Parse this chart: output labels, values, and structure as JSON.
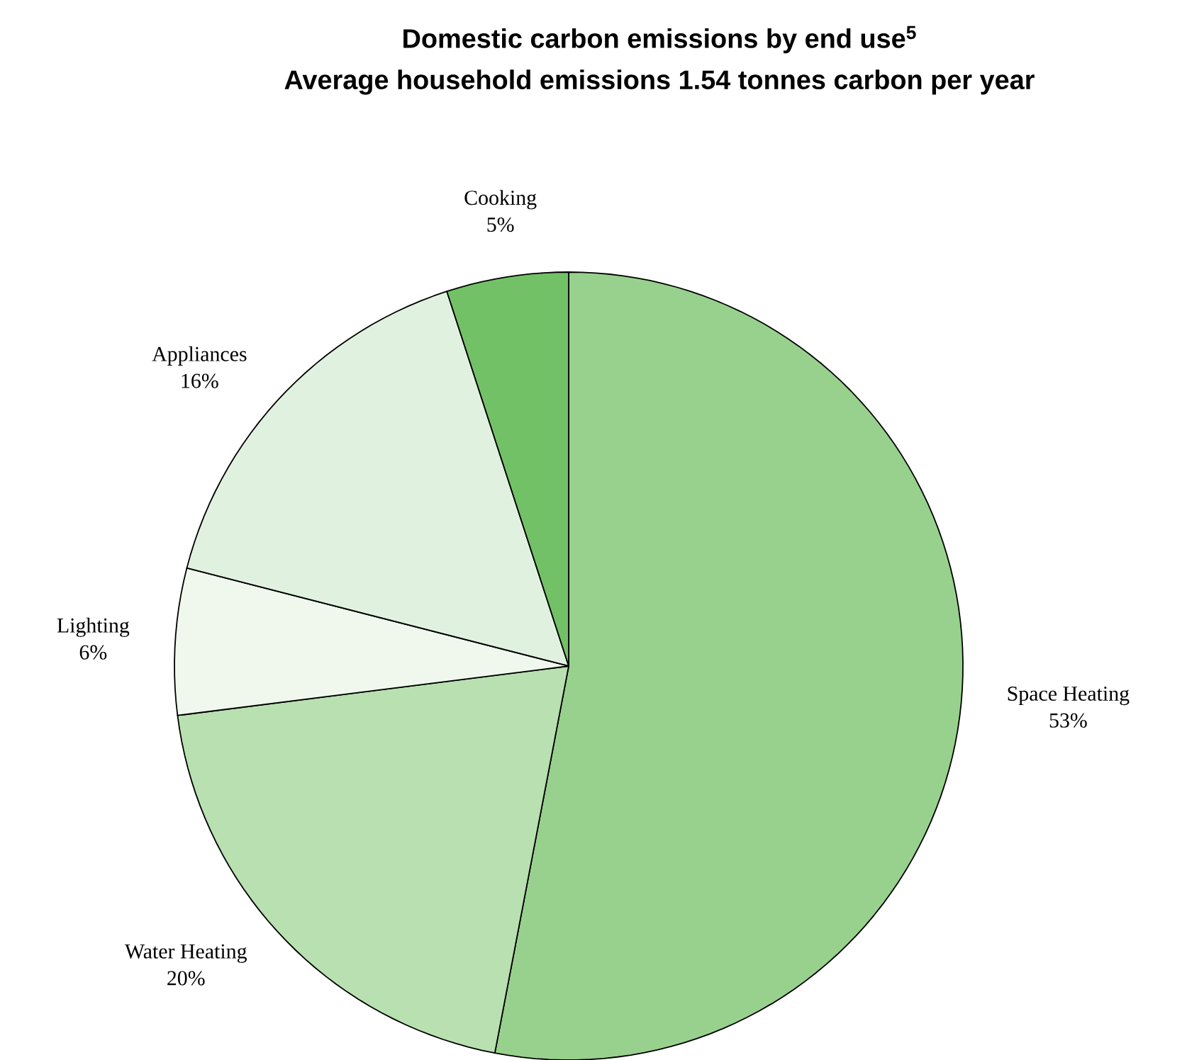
{
  "chart_data": {
    "type": "pie",
    "title": "Domestic carbon emissions by end use$^{5}$",
    "subtitle": "Average household emissions 1.54 tonnes carbon per year",
    "categories": [
      "Space Heating",
      "Water Heating",
      "Lighting",
      "Appliances",
      "Cooking"
    ],
    "values": [
      53,
      20,
      6,
      16,
      5
    ],
    "value_labels": [
      "53%",
      "20%",
      "6%",
      "16%",
      "5%"
    ],
    "colors": [
      "#98d18d",
      "#b8e0b0",
      "#f0f8ee",
      "#e0f2df",
      "#73c167"
    ]
  }
}
